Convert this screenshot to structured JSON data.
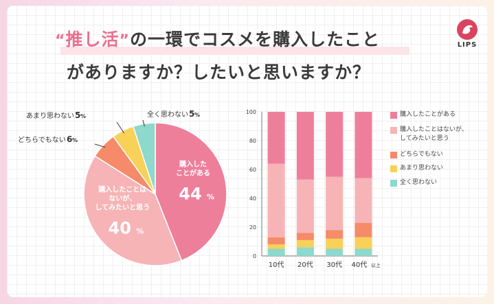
{
  "title": {
    "quote_open": "“",
    "highlight": "推し活",
    "quote_close": "”",
    "line1_rest": "の一環でコスメを購入したこと",
    "line2": "がありますか？したいと思いますか？"
  },
  "logo": "LIPS",
  "colors": {
    "bought": "#ee7f9b",
    "want": "#f6b4b7",
    "neutral": "#f58b69",
    "not_much": "#f8d158",
    "never": "#8ed8cc"
  },
  "chart_data": [
    {
      "type": "pie",
      "slices": [
        {
          "label": "購入した ことがある",
          "label_lines": [
            "購入した",
            "ことがある"
          ],
          "value": 44,
          "value_text": "44",
          "unit": "%",
          "color": "#ee7f9b"
        },
        {
          "label": "購入したことは ないが、 してみたいと思う",
          "label_lines": [
            "購入したことは",
            "ないが、",
            "してみたいと思う"
          ],
          "value": 40,
          "value_text": "40",
          "unit": "%",
          "color": "#f6b4b7"
        },
        {
          "label": "どちらでもない",
          "value": 6,
          "value_text": "6",
          "unit": "%",
          "color": "#f58b69"
        },
        {
          "label": "あまり思わない",
          "value": 5,
          "value_text": "5",
          "unit": "%",
          "color": "#f8d158"
        },
        {
          "label": "全く思わない",
          "value": 5,
          "value_text": "5",
          "unit": "%",
          "color": "#8ed8cc"
        }
      ]
    },
    {
      "type": "bar",
      "stacked": true,
      "categories": [
        "10代",
        "20代",
        "30代",
        "40代以上"
      ],
      "category_labels": [
        {
          "main": "10代",
          "suffix": ""
        },
        {
          "main": "20代",
          "suffix": ""
        },
        {
          "main": "30代",
          "suffix": ""
        },
        {
          "main": "40代",
          "suffix": "以上"
        }
      ],
      "ylim": [
        0,
        100
      ],
      "yticks": [
        0,
        20,
        40,
        60,
        80,
        100
      ],
      "series": [
        {
          "name": "全く思わない",
          "color": "#8ed8cc",
          "values": [
            5,
            6,
            5,
            5
          ]
        },
        {
          "name": "あまり思わない",
          "color": "#f8d158",
          "values": [
            3,
            5,
            7,
            8
          ]
        },
        {
          "name": "どちらでもない",
          "color": "#f58b69",
          "values": [
            5,
            5,
            6,
            10
          ]
        },
        {
          "name": "購入したことはないが、してみたいと思う",
          "legend_lines": [
            "購入したことはないが、",
            "してみたいと思う"
          ],
          "color": "#f6b4b7",
          "values": [
            51,
            37,
            37,
            31
          ]
        },
        {
          "name": "購入したことがある",
          "color": "#ee7f9b",
          "values": [
            36,
            47,
            45,
            46
          ]
        }
      ],
      "legend_order": [
        4,
        3,
        2,
        1,
        0
      ]
    }
  ]
}
